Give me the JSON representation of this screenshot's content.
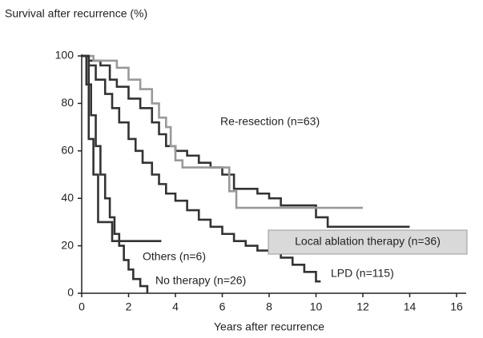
{
  "chart_data": {
    "type": "line",
    "step": true,
    "title": "Survival after recurrence (%)",
    "x_label": "Years after recurrence",
    "xlim": [
      0,
      16
    ],
    "xticks": [
      0,
      2,
      4,
      6,
      8,
      10,
      12,
      14,
      16
    ],
    "ylim": [
      0,
      100
    ],
    "yticks": [
      0,
      20,
      40,
      60,
      80,
      100
    ],
    "grid": false,
    "series": [
      {
        "name": "Re-resection (n=63)",
        "color": "#333333",
        "x": [
          0,
          0.3,
          0.8,
          1.2,
          1.5,
          2,
          2.5,
          3,
          3.3,
          3.6,
          4,
          4.5,
          5,
          5.5,
          6,
          6.5,
          7.5,
          8,
          8.5,
          10,
          10.5,
          14
        ],
        "values": [
          100,
          98,
          96,
          90,
          87,
          82,
          78,
          72,
          67,
          62,
          60,
          58,
          55,
          53,
          50,
          44,
          42,
          40,
          37,
          32,
          28,
          28
        ]
      },
      {
        "name": "Local ablation therapy (n=36)",
        "color": "#999999",
        "x": [
          0,
          0.5,
          1.5,
          2,
          2.5,
          3,
          3.3,
          3.6,
          3.8,
          4,
          4.3,
          6.3,
          6.6,
          12
        ],
        "values": [
          100,
          98,
          95,
          90,
          86,
          80,
          74,
          70,
          62,
          56,
          53,
          43,
          36,
          36
        ]
      },
      {
        "name": "LPD (n=115)",
        "color": "#333333",
        "x": [
          0,
          0.3,
          0.6,
          1,
          1.3,
          1.6,
          2,
          2.3,
          2.6,
          3,
          3.3,
          3.6,
          4,
          4.5,
          5,
          5.5,
          6,
          6.5,
          7,
          7.5,
          8,
          8.5,
          9,
          9.5,
          10,
          10.2
        ],
        "values": [
          100,
          96,
          90,
          84,
          78,
          72,
          65,
          60,
          55,
          50,
          46,
          42,
          39,
          35,
          31,
          28,
          25,
          22,
          20,
          18,
          17,
          15,
          12,
          9,
          5,
          5
        ]
      },
      {
        "name": "Others (n=6)",
        "color": "#333333",
        "x": [
          0,
          0.3,
          0.5,
          0.7,
          1.3,
          3.4
        ],
        "values": [
          100,
          65,
          50,
          30,
          22,
          22
        ]
      },
      {
        "name": "No therapy (n=26)",
        "color": "#333333",
        "x": [
          0,
          0.2,
          0.4,
          0.6,
          0.8,
          1,
          1.2,
          1.4,
          1.6,
          1.8,
          2,
          2.2,
          2.5,
          2.8
        ],
        "values": [
          100,
          88,
          75,
          62,
          50,
          40,
          32,
          25,
          20,
          14,
          10,
          6,
          3,
          0
        ]
      }
    ]
  }
}
